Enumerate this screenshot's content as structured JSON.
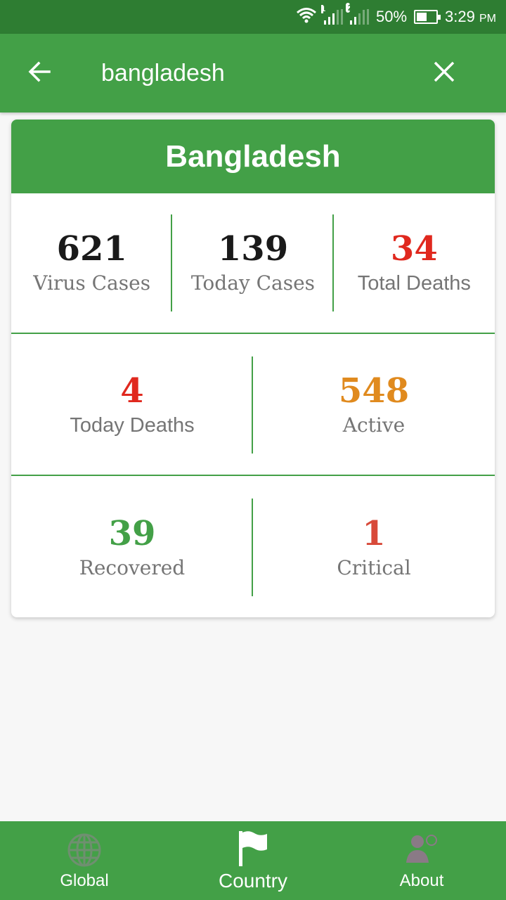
{
  "status_bar": {
    "sim1": "1",
    "sim2": "2",
    "battery": "50%",
    "time": "3:29",
    "ampm": "PM",
    "icons": [
      "wifi-icon",
      "signal-icon",
      "signal-icon",
      "battery-icon"
    ]
  },
  "app_bar": {
    "search_value": "bangladesh",
    "back_icon": "arrow-left-icon",
    "clear_icon": "close-icon"
  },
  "card": {
    "title": "Bangladesh",
    "stats": {
      "virus_cases": {
        "value": "621",
        "label": "Virus Cases"
      },
      "today_cases": {
        "value": "139",
        "label": "Today Cases"
      },
      "total_deaths": {
        "value": "34",
        "label": "Total Deaths"
      },
      "today_deaths": {
        "value": "4",
        "label": "Today Deaths"
      },
      "active": {
        "value": "548",
        "label": "Active"
      },
      "recovered": {
        "value": "39",
        "label": "Recovered"
      },
      "critical": {
        "value": "1",
        "label": "Critical"
      }
    },
    "colors": {
      "header": "#43a047",
      "default_value": "#1a1a1a",
      "deaths": "#e0281e",
      "active": "#e08a1e",
      "recovered": "#43a047",
      "critical": "#d84a3a"
    }
  },
  "bottom_nav": {
    "items": [
      {
        "label": "Global",
        "icon": "globe-icon"
      },
      {
        "label": "Country",
        "icon": "flag-icon"
      },
      {
        "label": "About",
        "icon": "person-icon"
      }
    ]
  }
}
